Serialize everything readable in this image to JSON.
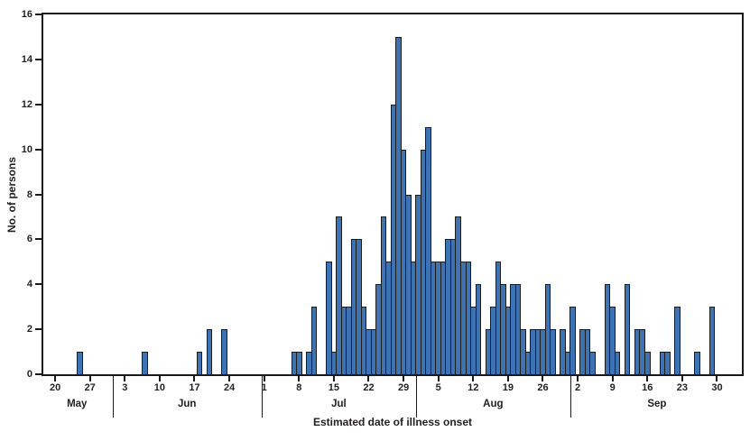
{
  "chart_data": {
    "type": "bar",
    "title": "",
    "ylabel": "No. of persons",
    "xlabel": "Estimated date of illness onset",
    "ylim": [
      0,
      16
    ],
    "yticks": [
      0,
      2,
      4,
      6,
      8,
      10,
      12,
      14,
      16
    ],
    "grid": "off",
    "legend": "none",
    "bar_color": "#3e73b3",
    "bar_border_color": "#1c1c1c",
    "frame_color": "#1a1a1a",
    "x_unit": "day of illness onset, one bar per day",
    "x_start": "May 20",
    "x_end": "Sep 30",
    "months": [
      {
        "name": "May",
        "first_day": 20,
        "tick_days": [
          20,
          27
        ],
        "values": [
          0,
          0,
          0,
          0,
          0,
          1,
          0,
          0,
          0,
          0,
          0,
          0
        ]
      },
      {
        "name": "Jun",
        "first_day": 1,
        "tick_days": [
          3,
          10,
          17,
          24
        ],
        "values": [
          0,
          0,
          0,
          0,
          0,
          0,
          1,
          0,
          0,
          0,
          0,
          0,
          0,
          0,
          0,
          0,
          0,
          1,
          0,
          2,
          0,
          0,
          2,
          0,
          0,
          0,
          0,
          0,
          0,
          0
        ]
      },
      {
        "name": "Jul",
        "first_day": 1,
        "tick_days": [
          1,
          8,
          15,
          22,
          29
        ],
        "values": [
          0,
          0,
          0,
          0,
          0,
          0,
          1,
          1,
          0,
          1,
          3,
          0,
          0,
          5,
          1,
          7,
          3,
          3,
          6,
          6,
          3,
          2,
          2,
          4,
          7,
          5,
          12,
          15,
          10,
          8,
          5
        ]
      },
      {
        "name": "Aug",
        "first_day": 1,
        "tick_days": [
          5,
          12,
          19,
          26
        ],
        "values": [
          8,
          10,
          11,
          5,
          5,
          5,
          6,
          6,
          7,
          5,
          5,
          3,
          4,
          0,
          2,
          3,
          5,
          4,
          3,
          4,
          4,
          2,
          1,
          2,
          2,
          2,
          4,
          2,
          0,
          2,
          1
        ]
      },
      {
        "name": "Sep",
        "first_day": 1,
        "tick_days": [
          2,
          9,
          16,
          23,
          30
        ],
        "values": [
          3,
          0,
          2,
          2,
          1,
          0,
          0,
          4,
          3,
          1,
          0,
          4,
          0,
          2,
          2,
          1,
          0,
          0,
          1,
          1,
          0,
          3,
          0,
          0,
          0,
          1,
          0,
          0,
          3,
          0
        ]
      }
    ]
  }
}
